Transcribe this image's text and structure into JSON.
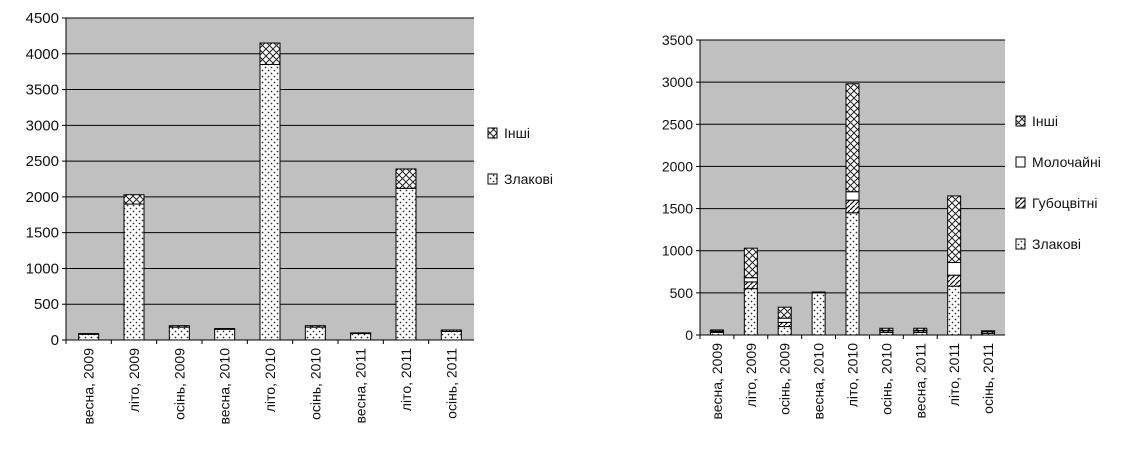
{
  "chart_data": [
    {
      "type": "bar",
      "stacked": true,
      "title": "",
      "xlabel": "",
      "ylabel": "",
      "categories": [
        "весна, 2009",
        "літо, 2009",
        "осінь, 2009",
        "весна, 2010",
        "літо, 2010",
        "осінь, 2010",
        "весна, 2011",
        "літо, 2011",
        "осінь, 2011"
      ],
      "ylim": [
        0,
        4500
      ],
      "yticks": [
        0,
        500,
        1000,
        1500,
        2000,
        2500,
        3000,
        3500,
        4000,
        4500
      ],
      "grid": true,
      "plot_background": "#c0c0c0",
      "legend_position": "right",
      "series": [
        {
          "name": "Злакові",
          "pattern": "dots",
          "values": [
            80,
            1900,
            180,
            150,
            3850,
            180,
            90,
            2120,
            120
          ]
        },
        {
          "name": "Інші",
          "pattern": "cross",
          "values": [
            10,
            130,
            20,
            10,
            300,
            20,
            10,
            270,
            20
          ]
        }
      ],
      "legend_order": [
        "Інші",
        "Злакові"
      ]
    },
    {
      "type": "bar",
      "stacked": true,
      "title": "",
      "xlabel": "",
      "ylabel": "",
      "categories": [
        "весна, 2009",
        "літо, 2009",
        "осінь, 2009",
        "весна, 2010",
        "літо, 2010",
        "осінь, 2010",
        "весна, 2011",
        "літо, 2011",
        "осінь, 2011"
      ],
      "ylim": [
        0,
        3500
      ],
      "yticks": [
        0,
        500,
        1000,
        1500,
        2000,
        2500,
        3000,
        3500
      ],
      "grid": true,
      "plot_background": "#c0c0c0",
      "legend_position": "right",
      "series": [
        {
          "name": "Злакові",
          "pattern": "dots",
          "values": [
            30,
            550,
            100,
            500,
            1450,
            30,
            30,
            580,
            20
          ]
        },
        {
          "name": "Губоцвітні",
          "pattern": "hatch",
          "values": [
            10,
            80,
            50,
            0,
            150,
            20,
            20,
            130,
            20
          ]
        },
        {
          "name": "Молочайні",
          "pattern": "plain",
          "values": [
            5,
            50,
            50,
            0,
            100,
            5,
            5,
            150,
            5
          ]
        },
        {
          "name": "Інші",
          "pattern": "cross",
          "values": [
            15,
            350,
            130,
            10,
            1280,
            25,
            25,
            790,
            5
          ]
        }
      ],
      "legend_order": [
        "Інші",
        "Молочайні",
        "Губоцвітні",
        "Злакові"
      ]
    }
  ]
}
